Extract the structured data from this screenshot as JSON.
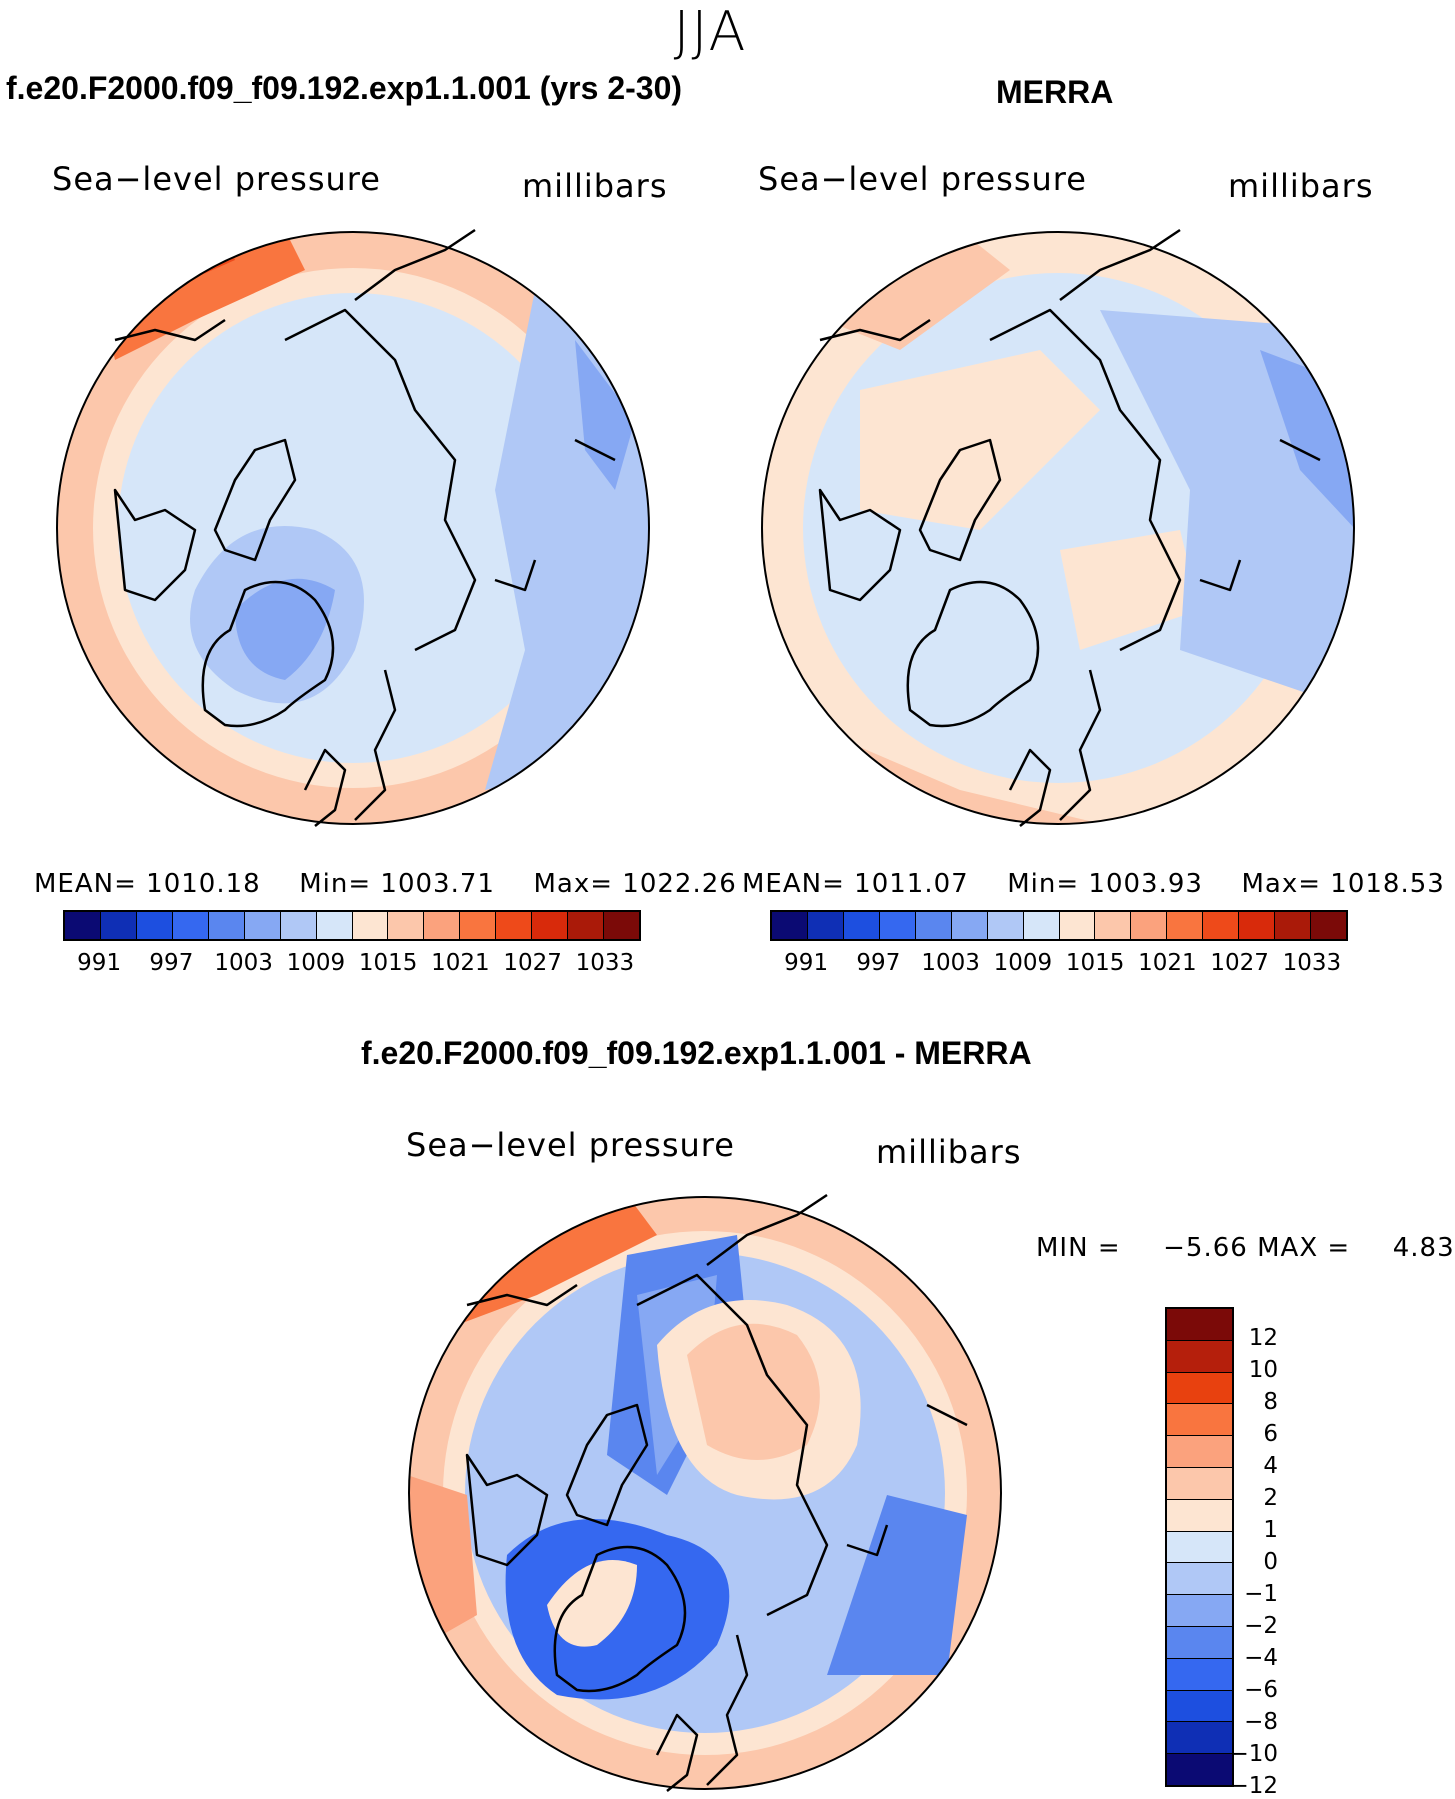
{
  "season": "JJA",
  "panels": {
    "model": {
      "title": "f.e20.F2000.f09_f09.192.exp1.1.001 (yrs 2-30)",
      "variable": "Sea−level pressure",
      "units": "millibars",
      "stats": {
        "mean_label": "MEAN=",
        "mean": "1010.18",
        "min_label": "Min=",
        "min": "1003.71",
        "max_label": "Max=",
        "max": "1022.26"
      }
    },
    "obs": {
      "title": "MERRA",
      "variable": "Sea−level pressure",
      "units": "millibars",
      "stats": {
        "mean_label": "MEAN=",
        "mean": "1011.07",
        "min_label": "Min=",
        "min": "1003.93",
        "max_label": "Max=",
        "max": "1018.53"
      }
    },
    "diff": {
      "title": "f.e20.F2000.f09_f09.192.exp1.1.001 - MERRA",
      "variable": "Sea−level pressure",
      "units": "millibars",
      "stats": {
        "min_label": "MIN =",
        "min": "−5.66",
        "max_label": "MAX =",
        "max": "4.83"
      }
    }
  },
  "colorbar_abs": {
    "colors": [
      "#0b0a73",
      "#0f2fb5",
      "#1d4fe0",
      "#3568f0",
      "#5a86ef",
      "#86a8f3",
      "#b0c8f6",
      "#d6e6f9",
      "#fde5d2",
      "#fcc7ab",
      "#fba27d",
      "#f9753f",
      "#ee4a1a",
      "#d82a0b",
      "#aa1a09",
      "#7b0a08"
    ],
    "labels": [
      "991",
      "997",
      "1003",
      "1009",
      "1015",
      "1021",
      "1027",
      "1033"
    ]
  },
  "colorbar_diff": {
    "colors": [
      "#7b0a08",
      "#b51f0c",
      "#e8410f",
      "#f9753f",
      "#fba27d",
      "#fcc7ab",
      "#fde5d2",
      "#d6e6f9",
      "#b0c8f6",
      "#86a8f3",
      "#5a86ef",
      "#3568f0",
      "#1d4fe0",
      "#0f2fb5",
      "#0b0a73"
    ],
    "labels": [
      "12",
      "10",
      "8",
      "6",
      "4",
      "2",
      "1",
      "0",
      "−1",
      "−2",
      "−4",
      "−6",
      "−8",
      "−10",
      "−12"
    ]
  },
  "map_fill": {
    "model": "#d6e6f9",
    "obs": "#d6e6f9",
    "diff": "#b0c8f6"
  }
}
